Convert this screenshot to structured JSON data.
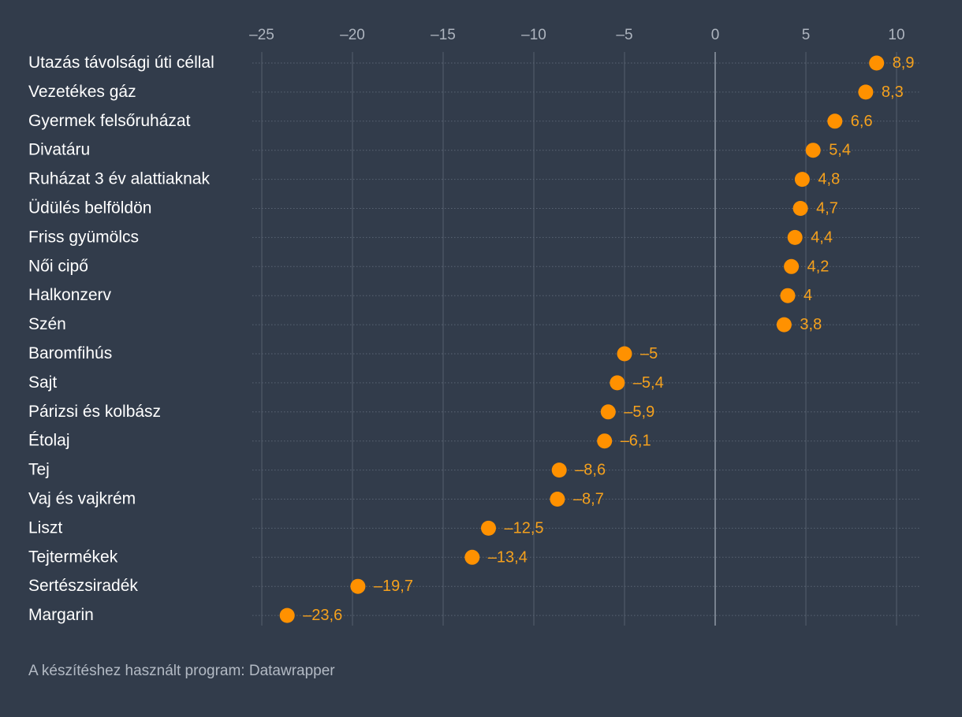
{
  "chart_data": {
    "type": "dot",
    "categories": [
      "Utazás távolsági úti céllal",
      "Vezetékes gáz",
      "Gyermek felsőruházat",
      "Divatáru",
      "Ruházat 3 év alattiaknak",
      "Üdülés belföldön",
      "Friss gyümölcs",
      "Női cipő",
      "Halkonzerv",
      "Szén",
      "Baromfihús",
      "Sajt",
      "Párizsi és kolbász",
      "Étolaj",
      "Tej",
      "Vaj és vajkrém",
      "Liszt",
      "Tejtermékek",
      "Sertészsiradék",
      "Margarin"
    ],
    "values": [
      8.9,
      8.3,
      6.6,
      5.4,
      4.8,
      4.7,
      4.4,
      4.2,
      4,
      3.8,
      -5,
      -5.4,
      -5.9,
      -6.1,
      -8.6,
      -8.7,
      -12.5,
      -13.4,
      -19.7,
      -23.6
    ],
    "value_labels": [
      "8,9",
      "8,3",
      "6,6",
      "5,4",
      "4,8",
      "4,7",
      "4,4",
      "4,2",
      "4",
      "3,8",
      "–5",
      "–5,4",
      "–5,9",
      "–6,1",
      "–8,6",
      "–8,7",
      "–12,5",
      "–13,4",
      "–19,7",
      "–23,6"
    ],
    "x_ticks": [
      -25,
      -20,
      -15,
      -10,
      -5,
      0,
      5,
      10
    ],
    "x_tick_labels": [
      "–25",
      "–20",
      "–15",
      "–10",
      "–5",
      "0",
      "5",
      "10"
    ],
    "xlim": [
      -25,
      10
    ],
    "title": "",
    "xlabel": "",
    "ylabel": "",
    "grid": true,
    "colors": {
      "background": "#323c4b",
      "dot": "#ff9100",
      "value_label": "#f5a11d",
      "gridline": "#4f5968",
      "zero_line": "#8a93a0",
      "row_line": "#5a6474"
    }
  },
  "footer": {
    "credit": "A készítéshez használt program: Datawrapper"
  }
}
